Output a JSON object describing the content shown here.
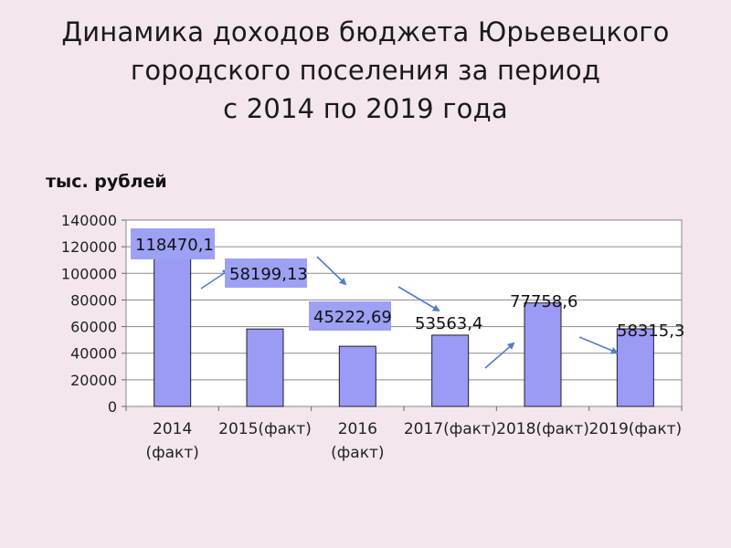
{
  "title_lines": [
    "Динамика доходов бюджета Юрьевецкого",
    "городского поселения за период",
    "с 2014 по 2019 года"
  ],
  "units_label": "тыс. рублей",
  "colors": {
    "background": "#f3e6ee",
    "bar": "#9b9bf5",
    "bar_stroke": "#1c1c2c",
    "label_box": "#9da1f4",
    "arrow": "#4f7fc6"
  },
  "chart_data": {
    "type": "bar",
    "categories": [
      [
        "2014",
        "(факт)"
      ],
      [
        "2015(факт)"
      ],
      [
        "2016",
        "(факт)"
      ],
      [
        "2017(факт)"
      ],
      [
        "2018(факт)"
      ],
      [
        "2019(факт)"
      ]
    ],
    "values": [
      118470.1,
      58199.13,
      45222.69,
      53563.4,
      77758.6,
      58315.3
    ],
    "data_labels": [
      "118470,1",
      "58199,13",
      "45222,69",
      "53563,4",
      "77758,6",
      "58315,3"
    ],
    "highlighted_labels": [
      true,
      true,
      true,
      false,
      false,
      false
    ],
    "ylim": [
      0,
      140000
    ],
    "yticks": [
      0,
      20000,
      40000,
      60000,
      80000,
      100000,
      120000,
      140000
    ],
    "grid": true,
    "xlabel": "",
    "ylabel": "тыс. рублей"
  }
}
